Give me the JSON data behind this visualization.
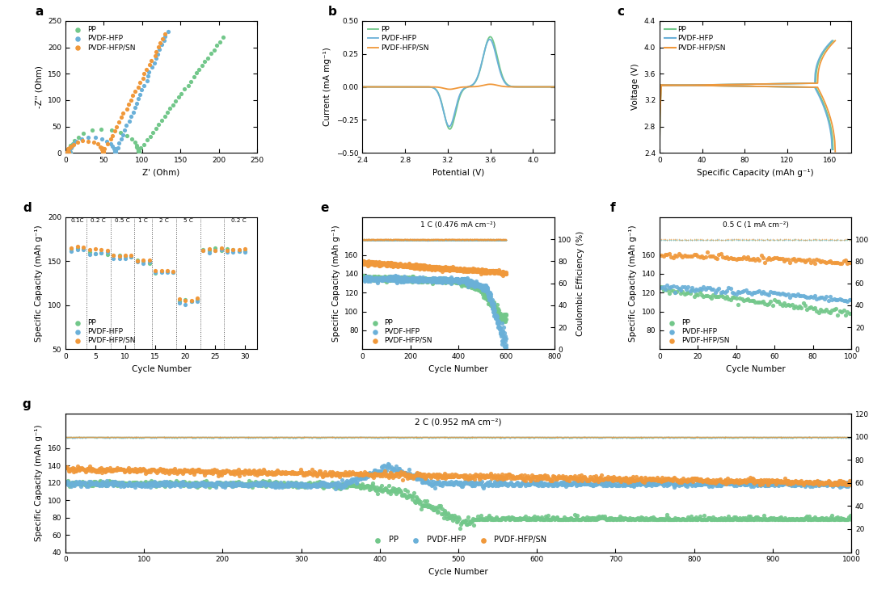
{
  "colors": {
    "PP": "#72c78a",
    "PVDF_HFP": "#6ab0d8",
    "PVDF_HFP_SN": "#f0983a"
  },
  "panel_a": {
    "xlabel": "Z' (Ohm)",
    "ylabel": "-Z'' (Ohm)",
    "xlim": [
      0,
      250
    ],
    "ylim": [
      0,
      250
    ],
    "xticks": [
      0,
      50,
      100,
      150,
      200,
      250
    ],
    "yticks": [
      0,
      50,
      100,
      150,
      200,
      250
    ]
  },
  "panel_b": {
    "xlabel": "Potential (V)",
    "ylabel": "Current (mA mg⁻¹)",
    "xlim": [
      2.4,
      4.2
    ],
    "ylim": [
      -0.5,
      0.5
    ],
    "xticks": [
      2.4,
      2.8,
      3.2,
      3.6,
      4.0
    ],
    "yticks": [
      -0.5,
      -0.25,
      0.0,
      0.25,
      0.5
    ]
  },
  "panel_c": {
    "xlabel": "Specific Capacity (mAh g⁻¹)",
    "ylabel": "Voltage (V)",
    "xlim": [
      0,
      180
    ],
    "ylim": [
      2.4,
      4.4
    ],
    "xticks": [
      0,
      40,
      80,
      120,
      160
    ],
    "yticks": [
      2.4,
      2.8,
      3.2,
      3.6,
      4.0,
      4.4
    ]
  },
  "panel_d": {
    "xlabel": "Cycle Number",
    "ylabel": "Specific Capacity (mAh g⁻¹)",
    "xlim": [
      0,
      32
    ],
    "ylim": [
      50,
      200
    ],
    "xticks": [
      0,
      5,
      10,
      15,
      20,
      25,
      30
    ],
    "yticks": [
      50,
      100,
      150,
      200
    ],
    "rate_labels": [
      "0.1C",
      "0.2 C",
      "0.5 C",
      "1 C",
      "2 C",
      "5 C",
      "0.2 C"
    ],
    "vlines": [
      3.5,
      7.5,
      11.5,
      14.5,
      18.5,
      22.5,
      26.5
    ]
  },
  "panel_e": {
    "xlabel": "Cycle Number",
    "ylabel": "Specific Capacity (mAh g⁻¹)",
    "ylabel2": "Coulombic Efficiency (%)",
    "xlim": [
      0,
      800
    ],
    "ylim": [
      60,
      200
    ],
    "ylim2": [
      0,
      120
    ],
    "xticks": [
      0,
      200,
      400,
      600,
      800
    ],
    "yticks": [
      80,
      100,
      120,
      140,
      160
    ],
    "yticks2": [
      0,
      20,
      40,
      60,
      80,
      100
    ],
    "annotation": "1 C (0.476 mA cm⁻²)"
  },
  "panel_f": {
    "xlabel": "Cycle Number",
    "ylabel": "Specific Capacity (mAh g⁻¹)",
    "ylabel2": "Coulombic Efficiency (%)",
    "xlim": [
      0,
      100
    ],
    "ylim": [
      60,
      200
    ],
    "ylim2": [
      0,
      120
    ],
    "xticks": [
      0,
      20,
      40,
      60,
      80,
      100
    ],
    "yticks": [
      80,
      100,
      120,
      140,
      160
    ],
    "yticks2": [
      0,
      20,
      40,
      60,
      80,
      100
    ],
    "annotation": "0.5 C (1 mA cm⁻²)"
  },
  "panel_g": {
    "xlabel": "Cycle Number",
    "ylabel": "Specific Capacity (mAh g⁻¹)",
    "ylabel2": "Coulombic Efficiency (%)",
    "xlim": [
      0,
      1000
    ],
    "ylim": [
      40,
      200
    ],
    "ylim2": [
      0,
      120
    ],
    "xticks": [
      0,
      100,
      200,
      300,
      400,
      500,
      600,
      700,
      800,
      900,
      1000
    ],
    "yticks": [
      40,
      60,
      80,
      100,
      120,
      140,
      160
    ],
    "yticks2": [
      0,
      20,
      40,
      60,
      80,
      100,
      120
    ],
    "annotation": "2 C (0.952 mA cm⁻²)"
  },
  "background_color": "#ffffff",
  "label_fontsize": 7.5,
  "tick_fontsize": 6.5,
  "legend_fontsize": 6.5,
  "panel_label_fontsize": 11
}
